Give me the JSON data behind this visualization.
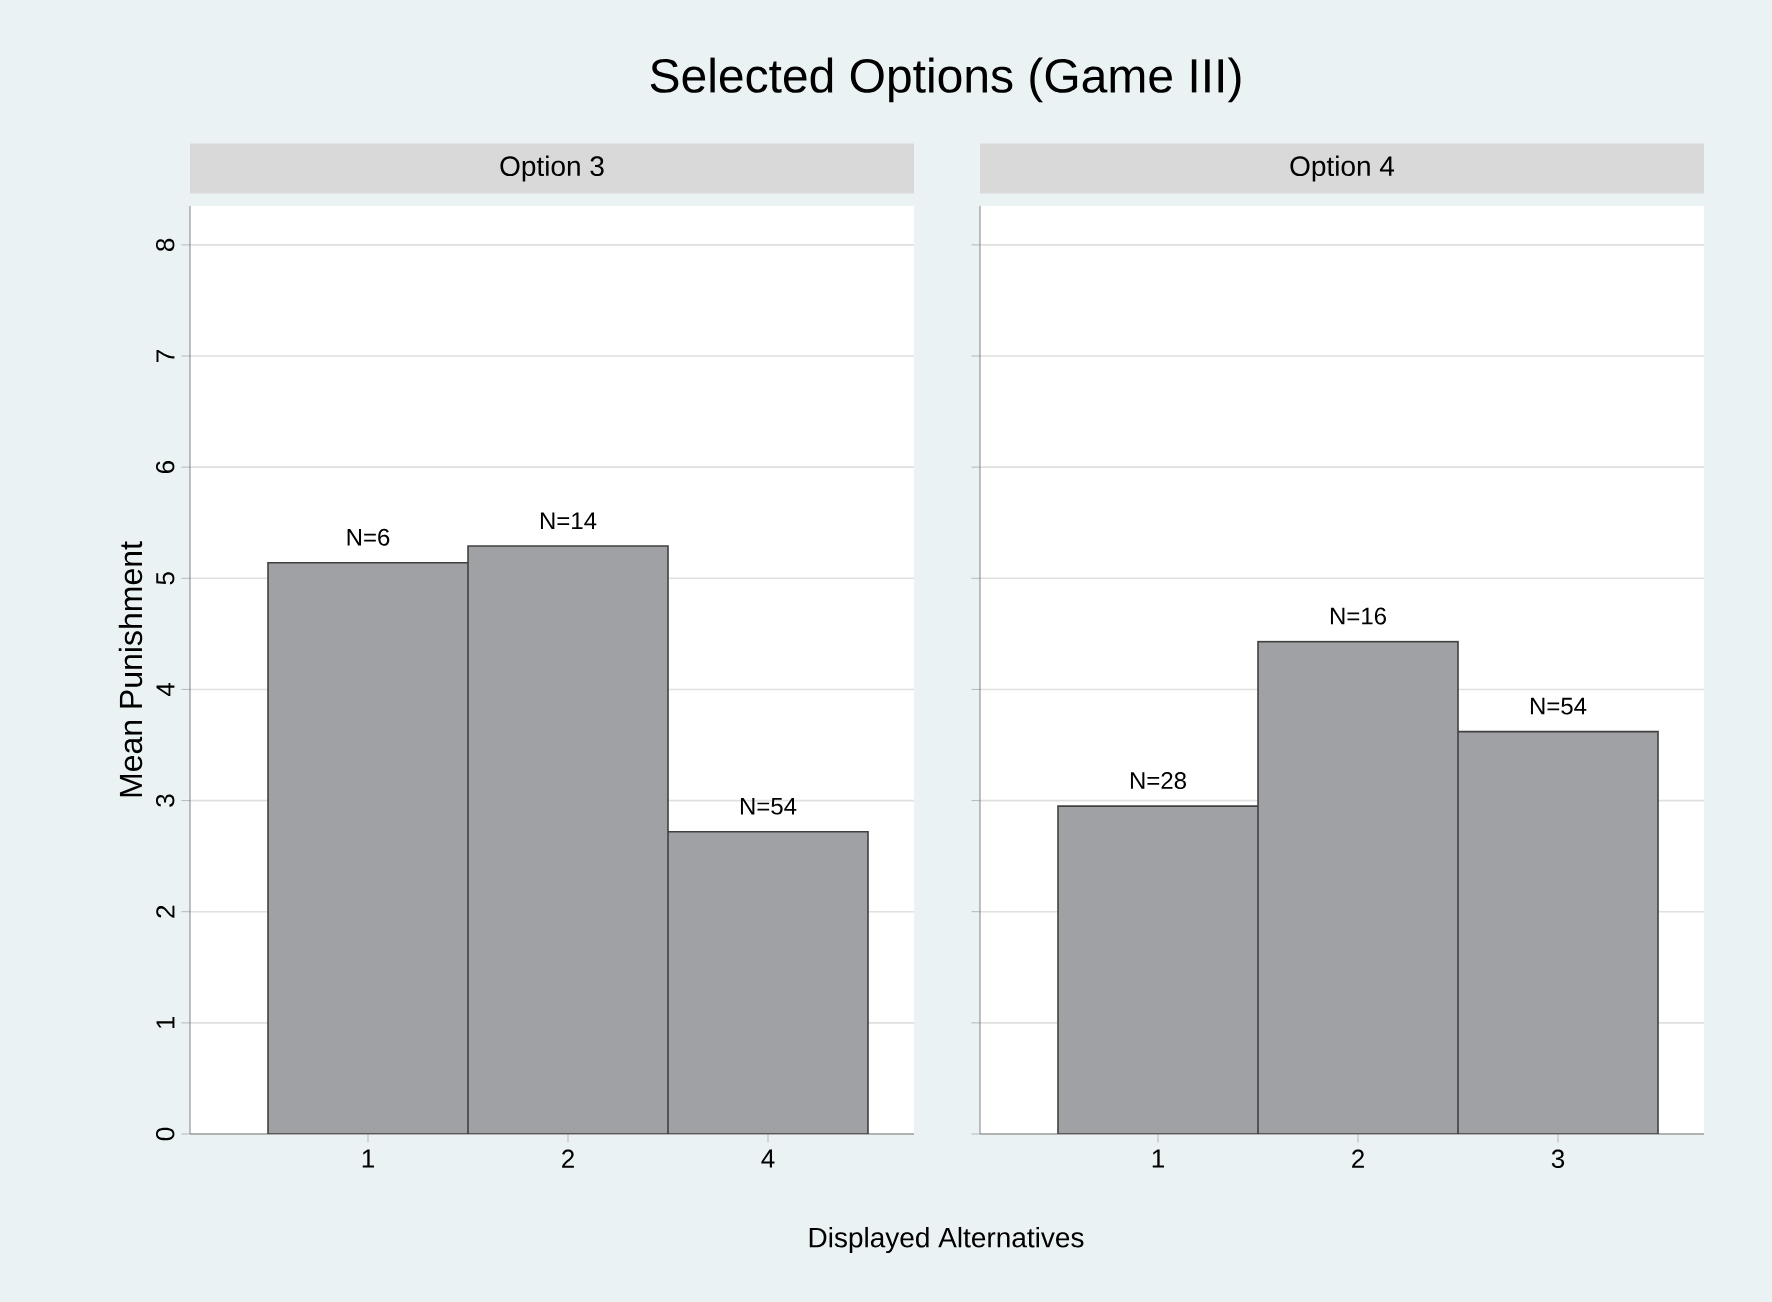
{
  "chart_data": [
    {
      "type": "bar",
      "title": "Selected Options (Game III)",
      "subtitle": "Option 3",
      "ylabel": "Mean Punishment",
      "categories": [
        "1",
        "2",
        "4"
      ],
      "values": [
        5.14,
        5.29,
        2.72
      ],
      "color": "#a0a1a5",
      "ylim": [
        0,
        8.35
      ],
      "yticks": [
        0,
        1,
        2,
        3,
        4,
        5,
        6,
        7,
        8
      ],
      "grid": "y",
      "annotations": [
        {
          "text": "N=6",
          "x": "1",
          "y": 5.14
        },
        {
          "text": "N=14",
          "x": "2",
          "y": 5.29
        },
        {
          "text": "N=54",
          "x": "4",
          "y": 2.72
        }
      ]
    },
    {
      "type": "bar",
      "subtitle": "Option 4",
      "xlabel": "Displayed Alternatives",
      "categories": [
        "1",
        "2",
        "3"
      ],
      "values": [
        2.95,
        4.43,
        3.62
      ],
      "color": "#a0a1a5",
      "ylim": [
        0,
        8.35
      ],
      "yticks": [
        0,
        1,
        2,
        3,
        4,
        5,
        6,
        7,
        8
      ],
      "grid": "y",
      "tick_labels": "x",
      "annotations": [
        {
          "text": "N=28",
          "x": "1",
          "y": 2.95
        },
        {
          "text": "N=16",
          "x": "2",
          "y": 4.43
        },
        {
          "text": "N=54",
          "x": "3",
          "y": 3.62
        }
      ]
    }
  ]
}
